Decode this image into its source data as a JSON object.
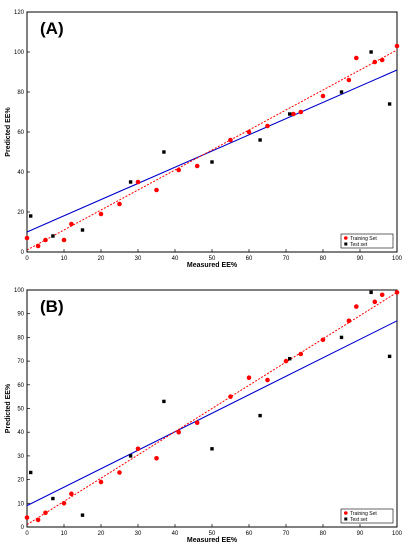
{
  "chart_data": [
    {
      "type": "scatter",
      "panel_label": "(A)",
      "xlabel": "Measured EE%",
      "ylabel": "Predicted EE%",
      "xlim": [
        0,
        100
      ],
      "ylim": [
        0,
        120
      ],
      "xticks": [
        0,
        10,
        20,
        30,
        40,
        50,
        60,
        70,
        80,
        90,
        100
      ],
      "yticks": [
        0,
        20,
        40,
        60,
        80,
        100,
        120
      ],
      "legend": {
        "position": "bottom-right",
        "entries": [
          "Training Set",
          "Test set"
        ]
      },
      "series": [
        {
          "name": "Training Set",
          "color": "#ff0000",
          "marker": "circle",
          "points": [
            [
              0,
              7
            ],
            [
              3,
              3
            ],
            [
              5,
              6
            ],
            [
              10,
              6
            ],
            [
              12,
              14
            ],
            [
              20,
              19
            ],
            [
              25,
              24
            ],
            [
              30,
              35
            ],
            [
              35,
              31
            ],
            [
              41,
              41
            ],
            [
              46,
              43
            ],
            [
              55,
              56
            ],
            [
              60,
              60
            ],
            [
              65,
              63
            ],
            [
              72,
              69
            ],
            [
              74,
              70
            ],
            [
              80,
              78
            ],
            [
              87,
              86
            ],
            [
              89,
              97
            ],
            [
              94,
              95
            ],
            [
              96,
              96
            ],
            [
              100,
              103
            ]
          ]
        },
        {
          "name": "Test set",
          "color": "#000000",
          "marker": "square",
          "points": [
            [
              1,
              18
            ],
            [
              7,
              8
            ],
            [
              15,
              11
            ],
            [
              28,
              35
            ],
            [
              37,
              50
            ],
            [
              50,
              45
            ],
            [
              63,
              56
            ],
            [
              71,
              69
            ],
            [
              85,
              80
            ],
            [
              93,
              100
            ],
            [
              98,
              74
            ]
          ]
        }
      ],
      "fit_lines": [
        {
          "color": "#0000cc",
          "style": "solid",
          "y_at_0": 10,
          "y_at_100": 91
        },
        {
          "color": "#ff0000",
          "style": "dotted",
          "y_at_0": 1,
          "y_at_100": 101
        }
      ]
    },
    {
      "type": "scatter",
      "panel_label": "(B)",
      "xlabel": "Measured EE%",
      "ylabel": "Predicted EE%",
      "xlim": [
        0,
        100
      ],
      "ylim": [
        0,
        100
      ],
      "xticks": [
        0,
        10,
        20,
        30,
        40,
        50,
        60,
        70,
        80,
        90,
        100
      ],
      "yticks": [
        0,
        10,
        20,
        30,
        40,
        50,
        60,
        70,
        80,
        90,
        100
      ],
      "legend": {
        "position": "bottom-right",
        "entries": [
          "Training Set",
          "Test set"
        ]
      },
      "series": [
        {
          "name": "Training Set",
          "color": "#ff0000",
          "marker": "circle",
          "points": [
            [
              0,
              4
            ],
            [
              3,
              3
            ],
            [
              5,
              6
            ],
            [
              10,
              10
            ],
            [
              12,
              14
            ],
            [
              20,
              19
            ],
            [
              25,
              23
            ],
            [
              30,
              33
            ],
            [
              35,
              29
            ],
            [
              41,
              40
            ],
            [
              46,
              44
            ],
            [
              55,
              55
            ],
            [
              60,
              63
            ],
            [
              65,
              62
            ],
            [
              70,
              70
            ],
            [
              74,
              73
            ],
            [
              80,
              79
            ],
            [
              87,
              87
            ],
            [
              89,
              93
            ],
            [
              94,
              95
            ],
            [
              96,
              98
            ],
            [
              100,
              99
            ]
          ]
        },
        {
          "name": "Test set",
          "color": "#000000",
          "marker": "square",
          "points": [
            [
              1,
              23
            ],
            [
              7,
              12
            ],
            [
              15,
              5
            ],
            [
              28,
              30
            ],
            [
              37,
              53
            ],
            [
              50,
              33
            ],
            [
              63,
              47
            ],
            [
              71,
              71
            ],
            [
              85,
              80
            ],
            [
              93,
              99
            ],
            [
              98,
              72
            ]
          ]
        }
      ],
      "fit_lines": [
        {
          "color": "#0000cc",
          "style": "solid",
          "y_at_0": 9,
          "y_at_100": 87
        },
        {
          "color": "#ff0000",
          "style": "dotted",
          "y_at_0": 1,
          "y_at_100": 99
        }
      ]
    }
  ]
}
